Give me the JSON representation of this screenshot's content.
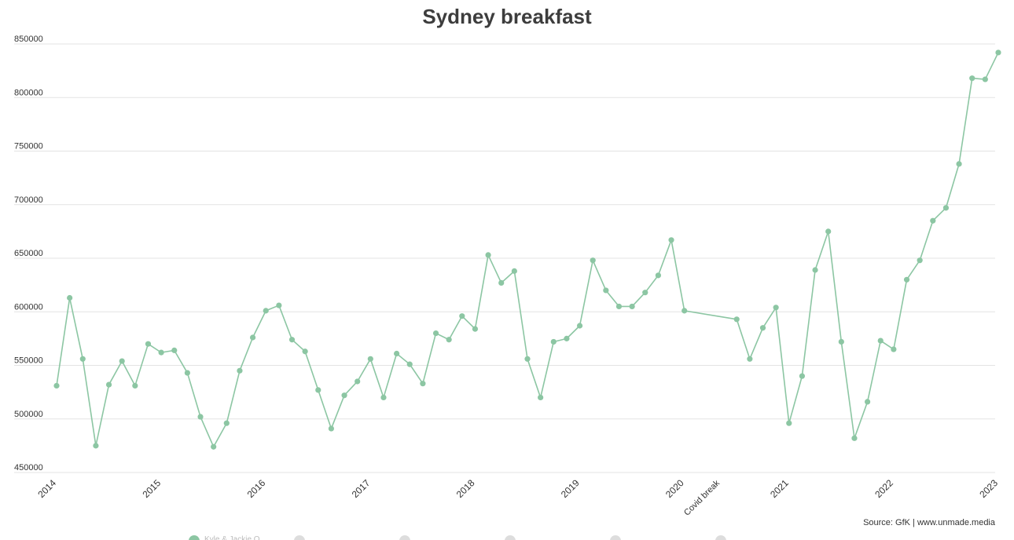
{
  "chart_data": {
    "type": "line",
    "title": "Sydney breakfast",
    "xlabel": "",
    "ylabel": "",
    "ylim": [
      450000,
      850000
    ],
    "yticks": [
      "450000",
      "500000",
      "550000",
      "600000",
      "650000",
      "700000",
      "750000",
      "800000",
      "850000"
    ],
    "xticks": [
      "2014",
      "2015",
      "2016",
      "2017",
      "2018",
      "2019",
      "2020",
      "2021",
      "2022",
      "2023"
    ],
    "grid": true,
    "line_color": "#8cc6a3",
    "series": [
      {
        "name": "",
        "x": [
          2014.0,
          2014.125,
          2014.25,
          2014.375,
          2014.5,
          2014.625,
          2014.75,
          2014.875,
          2015.0,
          2015.125,
          2015.25,
          2015.375,
          2015.5,
          2015.625,
          2015.75,
          2015.875,
          2016.0,
          2016.125,
          2016.25,
          2016.375,
          2016.5,
          2016.625,
          2016.75,
          2016.875,
          2017.0,
          2017.125,
          2017.25,
          2017.375,
          2017.5,
          2017.625,
          2017.75,
          2017.875,
          2018.0,
          2018.125,
          2018.25,
          2018.375,
          2018.5,
          2018.625,
          2018.75,
          2018.875,
          2019.0,
          2019.125,
          2019.25,
          2019.375,
          2019.5,
          2019.625,
          2019.75,
          2019.875,
          2020.0,
          2020.5,
          2020.625,
          2020.75,
          2020.875,
          2021.0,
          2021.125,
          2021.25,
          2021.375,
          2021.5,
          2021.625,
          2021.75,
          2021.875,
          2022.0,
          2022.125,
          2022.25,
          2022.375,
          2022.5,
          2022.625,
          2022.75,
          2022.875,
          2023.0
        ],
        "values": [
          531000,
          613000,
          556000,
          475000,
          532000,
          554000,
          531000,
          570000,
          562000,
          564000,
          543000,
          502000,
          474000,
          496000,
          545000,
          576000,
          601000,
          606000,
          574000,
          563000,
          527000,
          491000,
          522000,
          535000,
          556000,
          520000,
          561000,
          551000,
          533000,
          580000,
          574000,
          596000,
          584000,
          653000,
          627000,
          638000,
          556000,
          520000,
          572000,
          575000,
          587000,
          648000,
          620000,
          605000,
          605000,
          618000,
          634000,
          667000,
          601000,
          593000,
          556000,
          585000,
          604000,
          496000,
          540000,
          639000,
          675000,
          572000,
          482000,
          516000,
          573000,
          565000,
          630000,
          648000,
          685000,
          697000,
          738000,
          818000,
          817000,
          842000
        ]
      }
    ],
    "annotations": [
      {
        "text": "Covid break",
        "x": 2020.25
      }
    ]
  },
  "source": "Source: GfK | www.unmade.media",
  "legend": [
    {
      "label": "Kyle & Jackie O",
      "color": "#8cc6a3"
    },
    {
      "label": "",
      "color": "#dddddd"
    },
    {
      "label": "",
      "color": "#dddddd"
    },
    {
      "label": "",
      "color": "#dddddd"
    },
    {
      "label": "",
      "color": "#dddddd"
    },
    {
      "label": "",
      "color": "#dddddd"
    }
  ]
}
